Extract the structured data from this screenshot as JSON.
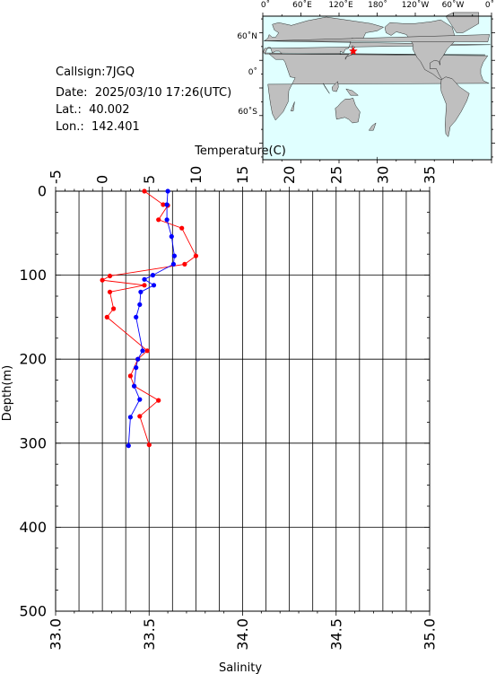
{
  "info": {
    "callsign": "Callsign:7JGQ",
    "date": "Date:  2025/03/10 17:26(UTC)",
    "lat": "Lat.:  40.002",
    "lon": "Lon.:  142.401"
  },
  "map": {
    "lon_labels": [
      "0˚",
      "60˚E",
      "120˚E",
      "180˚",
      "120˚W",
      "60˚W",
      "0˚"
    ],
    "lat_labels": [
      "60˚N",
      "0˚",
      "60˚S"
    ],
    "station": {
      "lat": 40.002,
      "lon": 142.401
    },
    "colors": {
      "ocean": "#e0ffff",
      "land": "#bfbfbf",
      "station": "#ff0000"
    }
  },
  "chart_data": {
    "type": "scatter",
    "ylabel": "Depth(m)",
    "ylim": [
      500,
      0
    ],
    "yticks": [
      0,
      100,
      200,
      300,
      400,
      500
    ],
    "grid": true,
    "top_axis": {
      "label": "Temperature(C)",
      "range": [
        -5,
        35
      ],
      "ticks": [
        -5,
        0,
        5,
        10,
        15,
        20,
        25,
        30,
        35
      ]
    },
    "bottom_axis": {
      "label": "Salinity",
      "range": [
        33.0,
        35.0
      ],
      "ticks": [
        "33.0",
        "33.5",
        "34.0",
        "34.5",
        "35.0"
      ]
    },
    "series": [
      {
        "color": "#ff0000",
        "axis": "top",
        "depth": [
          0,
          16,
          17,
          34,
          44,
          77,
          87,
          101,
          106,
          112,
          120,
          140,
          150,
          190,
          200,
          220,
          232,
          249,
          268,
          302
        ],
        "values": [
          4.5,
          6.5,
          7.0,
          6.0,
          8.5,
          10.0,
          8.8,
          0.8,
          0.0,
          4.5,
          0.8,
          1.2,
          0.5,
          4.8,
          3.8,
          3.0,
          3.4,
          6.0,
          4.0,
          5.0
        ]
      },
      {
        "color": "#0000ff",
        "axis": "bottom",
        "depth": [
          0,
          16,
          34,
          54,
          77,
          87,
          100,
          105,
          112,
          120,
          135,
          150,
          190,
          200,
          210,
          232,
          248,
          269,
          303
        ],
        "values": [
          33.6,
          33.595,
          33.595,
          33.62,
          33.635,
          33.63,
          33.52,
          33.475,
          33.525,
          33.455,
          33.45,
          33.43,
          33.465,
          33.44,
          33.43,
          33.42,
          33.45,
          33.4,
          33.39
        ]
      }
    ]
  }
}
